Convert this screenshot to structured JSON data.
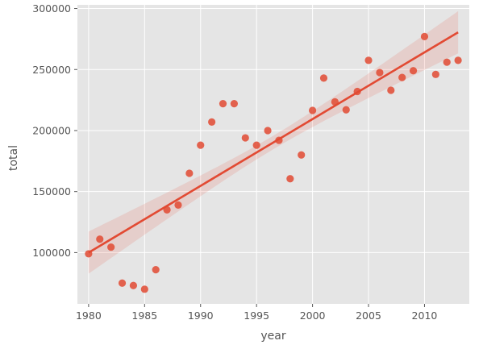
{
  "chart_data": {
    "type": "scatter",
    "title": "",
    "xlabel": "year",
    "ylabel": "total",
    "xlim": [
      1979,
      2014
    ],
    "ylim": [
      58000,
      303000
    ],
    "xticks": [
      1980,
      1985,
      1990,
      1995,
      2000,
      2005,
      2010
    ],
    "yticks": [
      100000,
      150000,
      200000,
      250000,
      300000
    ],
    "grid": true,
    "legend": "none",
    "colors": {
      "panel": "#e5e5e5",
      "grid": "#ffffff",
      "points": "#e24a33",
      "band": "#e24a33"
    },
    "points": [
      {
        "x": 1980,
        "y": 99000
      },
      {
        "x": 1981,
        "y": 111000
      },
      {
        "x": 1982,
        "y": 104500
      },
      {
        "x": 1983,
        "y": 75000
      },
      {
        "x": 1984,
        "y": 73000
      },
      {
        "x": 1985,
        "y": 70000
      },
      {
        "x": 1986,
        "y": 86000
      },
      {
        "x": 1987,
        "y": 135000
      },
      {
        "x": 1988,
        "y": 139000
      },
      {
        "x": 1989,
        "y": 165000
      },
      {
        "x": 1990,
        "y": 188000
      },
      {
        "x": 1991,
        "y": 207000
      },
      {
        "x": 1992,
        "y": 222000
      },
      {
        "x": 1993,
        "y": 222000
      },
      {
        "x": 1994,
        "y": 194000
      },
      {
        "x": 1995,
        "y": 188000
      },
      {
        "x": 1996,
        "y": 200000
      },
      {
        "x": 1997,
        "y": 192000
      },
      {
        "x": 1998,
        "y": 160500
      },
      {
        "x": 1999,
        "y": 180000
      },
      {
        "x": 2000,
        "y": 216500
      },
      {
        "x": 2001,
        "y": 243000
      },
      {
        "x": 2002,
        "y": 223500
      },
      {
        "x": 2003,
        "y": 217000
      },
      {
        "x": 2004,
        "y": 232000
      },
      {
        "x": 2005,
        "y": 257500
      },
      {
        "x": 2006,
        "y": 247500
      },
      {
        "x": 2007,
        "y": 233000
      },
      {
        "x": 2008,
        "y": 243500
      },
      {
        "x": 2009,
        "y": 249000
      },
      {
        "x": 2010,
        "y": 277000
      },
      {
        "x": 2011,
        "y": 246000
      },
      {
        "x": 2012,
        "y": 256000
      },
      {
        "x": 2013,
        "y": 257500
      }
    ],
    "regression": {
      "x": [
        1980,
        2013
      ],
      "y": [
        100000,
        280500
      ],
      "ci_lower": [
        79000,
        267000
      ],
      "ci_upper": [
        121000,
        294000
      ]
    }
  }
}
